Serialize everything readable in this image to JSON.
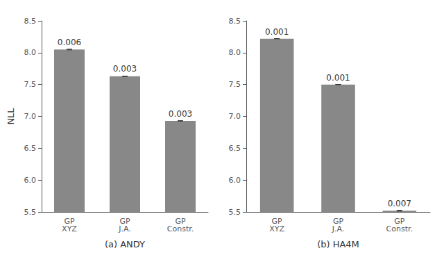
{
  "chart_data": [
    {
      "type": "bar",
      "categories": [
        "GP\nXYZ",
        "GP\nJ.A.",
        "GP\nConstr."
      ],
      "values": [
        8.05,
        7.63,
        6.93
      ],
      "errors": [
        0.006,
        0.003,
        0.003
      ],
      "error_labels": [
        "0.006",
        "0.003",
        "0.003"
      ],
      "xlabel": "(a) ANDY",
      "ylabel": "NLL",
      "color": "#888888",
      "ylim": [
        5.5,
        8.5
      ],
      "yticks": [
        5.5,
        {
          "value": 6.0,
          "label": "6.0"
        },
        6.5,
        {
          "value": 7.0,
          "label": "7.0"
        },
        7.5,
        {
          "value": 8.0,
          "label": "8.0"
        },
        8.5
      ],
      "grid": false
    },
    {
      "type": "bar",
      "categories": [
        "GP\nXYZ",
        "GP\nJ.A.",
        "GP\nConstr."
      ],
      "values": [
        8.22,
        7.5,
        5.52
      ],
      "errors": [
        0.001,
        0.001,
        0.007
      ],
      "error_labels": [
        "0.001",
        "0.001",
        "0.007"
      ],
      "xlabel": "(b) HA4M",
      "color": "#888888",
      "ylim": [
        5.5,
        8.5
      ],
      "yticks": [
        5.5,
        {
          "value": 6.0,
          "label": "6.0"
        },
        6.5,
        {
          "value": 7.0,
          "label": "7.0"
        },
        7.5,
        {
          "value": 8.0,
          "label": "8.0"
        },
        8.5
      ],
      "grid": false
    }
  ]
}
